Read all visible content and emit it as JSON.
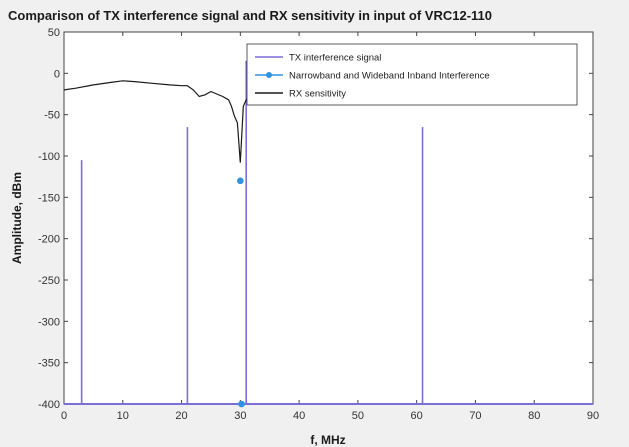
{
  "chart_data": {
    "type": "line",
    "title": "Comparison of TX interference signal and RX sensitivity in input of VRC12-110",
    "xlabel": "f, MHz",
    "ylabel": "Amplitude, dBm",
    "xlim": [
      0,
      90
    ],
    "ylim": [
      -400,
      50
    ],
    "xticks": [
      0,
      10,
      20,
      30,
      40,
      50,
      60,
      70,
      80,
      90
    ],
    "yticks": [
      50,
      0,
      -50,
      -100,
      -150,
      -200,
      -250,
      -300,
      -350,
      -400
    ],
    "grid": false,
    "legend_position": "top-right",
    "series": [
      {
        "name": "TX interference signal",
        "kind": "stem",
        "color": "#7b6fd6",
        "baseline": -400,
        "x": [
          3,
          21,
          30.2,
          31,
          61
        ],
        "y": [
          -105,
          -65,
          -400,
          15,
          -65
        ]
      },
      {
        "name": "Narrowband and Wideband Inband Interference",
        "kind": "marker",
        "color": "#2f93e0",
        "x": [
          30,
          30.2
        ],
        "y": [
          -130,
          -400
        ]
      },
      {
        "name": "RX sensitivity",
        "kind": "line",
        "color": "#1a1a1a",
        "x": [
          0,
          2,
          5,
          8,
          10,
          12,
          15,
          18,
          20,
          21,
          22,
          23,
          24,
          25,
          26,
          27,
          28,
          28.5,
          29,
          29.5,
          30,
          30.5,
          31,
          31.5
        ],
        "y": [
          -20,
          -18,
          -14,
          -11,
          -9,
          -10,
          -12,
          -14,
          -15,
          -15,
          -20,
          -28,
          -26,
          -22,
          -25,
          -28,
          -32,
          -40,
          -52,
          -60,
          -108,
          -40,
          -32,
          -28
        ]
      }
    ]
  }
}
